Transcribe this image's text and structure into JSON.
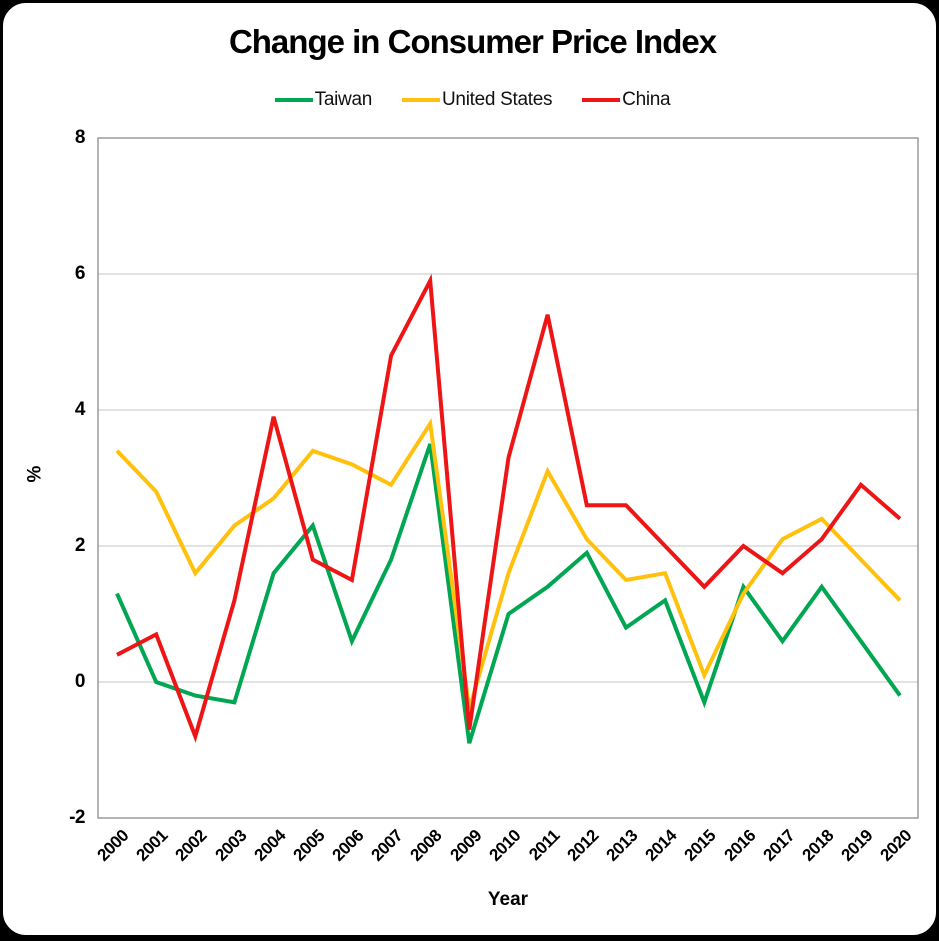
{
  "title": "Change in Consumer Price Index",
  "legend": {
    "items": [
      "Taiwan",
      "United States",
      "China"
    ]
  },
  "colors": {
    "taiwan": "#00A651",
    "united_states": "#FFC10E",
    "china": "#ED1515",
    "gridline": "#C6C6C6",
    "plot_border": "#9B9B9B",
    "text": "#000000"
  },
  "chart_data": {
    "type": "line",
    "title": "Change in Consumer Price Index",
    "xlabel": "Year",
    "ylabel": "%",
    "x": [
      "2000",
      "2001",
      "2002",
      "2003",
      "2004",
      "2005",
      "2006",
      "2007",
      "2008",
      "2009",
      "2010",
      "2011",
      "2012",
      "2013",
      "2014",
      "2015",
      "2016",
      "2017",
      "2018",
      "2019",
      "2020"
    ],
    "series": [
      {
        "name": "Taiwan",
        "color": "#00A651",
        "values": [
          1.3,
          0.0,
          -0.2,
          -0.3,
          1.6,
          2.3,
          0.6,
          1.8,
          3.5,
          -0.9,
          1.0,
          1.4,
          1.9,
          0.8,
          1.2,
          -0.3,
          1.4,
          0.6,
          1.4,
          0.6,
          -0.2
        ]
      },
      {
        "name": "United States",
        "color": "#FFC10E",
        "values": [
          3.4,
          2.8,
          1.6,
          2.3,
          2.7,
          3.4,
          3.2,
          2.9,
          3.8,
          -0.4,
          1.6,
          3.1,
          2.1,
          1.5,
          1.6,
          0.1,
          1.3,
          2.1,
          2.4,
          1.8,
          1.2
        ]
      },
      {
        "name": "China",
        "color": "#ED1515",
        "values": [
          0.4,
          0.7,
          -0.8,
          1.2,
          3.9,
          1.8,
          1.5,
          4.8,
          5.9,
          -0.7,
          3.3,
          5.4,
          2.6,
          2.6,
          2.0,
          1.4,
          2.0,
          1.6,
          2.1,
          2.9,
          2.4
        ]
      }
    ],
    "ylim": [
      -2,
      8
    ],
    "yticks": [
      8,
      6,
      4,
      2,
      0,
      -2
    ],
    "grid": true,
    "legend_position": "top-center"
  }
}
